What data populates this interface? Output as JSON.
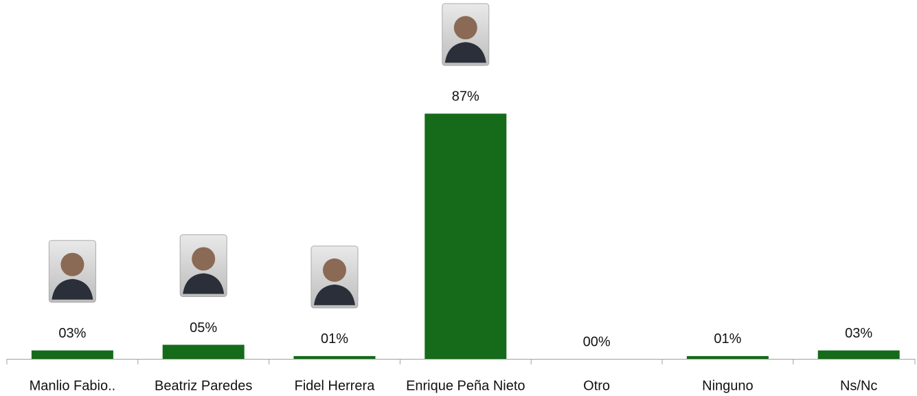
{
  "chart_data": {
    "type": "bar",
    "categories": [
      "Manlio Fabio..",
      "Beatriz Paredes",
      "Fidel Herrera",
      "Enrique Peña Nieto",
      "Otro",
      "Ninguno",
      "Ns/Nc"
    ],
    "values": [
      3,
      5,
      1,
      87,
      0,
      1,
      3
    ],
    "value_labels": [
      "03%",
      "05%",
      "01%",
      "87%",
      "00%",
      "01%",
      "03%"
    ],
    "color": "#156b1a",
    "ylim": [
      0,
      100
    ]
  }
}
